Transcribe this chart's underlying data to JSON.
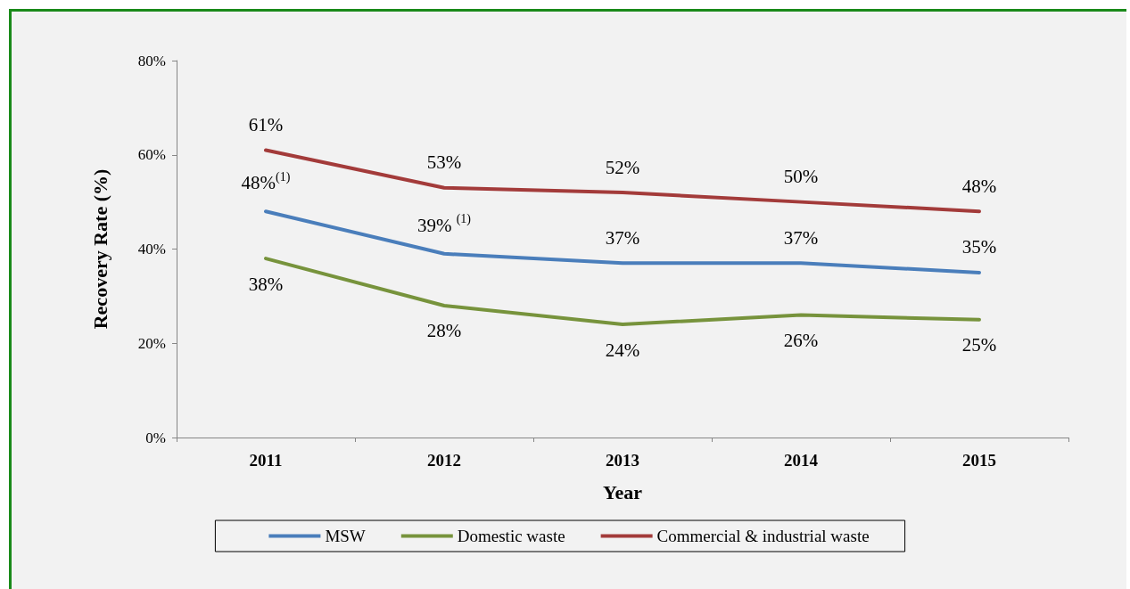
{
  "chart_data": {
    "type": "line",
    "xlabel": "Year",
    "ylabel": "Recovery Rate (%)",
    "categories": [
      "2011",
      "2012",
      "2013",
      "2014",
      "2015"
    ],
    "ylim": [
      0,
      80
    ],
    "yticks": [
      {
        "value": 0,
        "label": "0%"
      },
      {
        "value": 20,
        "label": "20%"
      },
      {
        "value": 40,
        "label": "40%"
      },
      {
        "value": 60,
        "label": "60%"
      },
      {
        "value": 80,
        "label": "80%"
      }
    ],
    "grid": false,
    "legend": "bottom",
    "marker": "none",
    "line_style": "solid",
    "series": [
      {
        "name": "MSW",
        "color": "#4a7ebb",
        "values": [
          48,
          39,
          37,
          37,
          35
        ],
        "value_labels": [
          "48%$^{(1)}$",
          "39% $^{(1)}$",
          "37%",
          "37%",
          "35%"
        ]
      },
      {
        "name": "Domestic waste",
        "color": "#77933c",
        "values": [
          38,
          28,
          24,
          26,
          25
        ],
        "value_labels": [
          "38%",
          "28%",
          "24%",
          "26%",
          "25%"
        ]
      },
      {
        "name": "Commercial & industrial waste",
        "color": "#a33b3a",
        "values": [
          61,
          53,
          52,
          50,
          48
        ],
        "value_labels": [
          "61%",
          "53%",
          "52%",
          "50%",
          "48%"
        ]
      }
    ]
  }
}
